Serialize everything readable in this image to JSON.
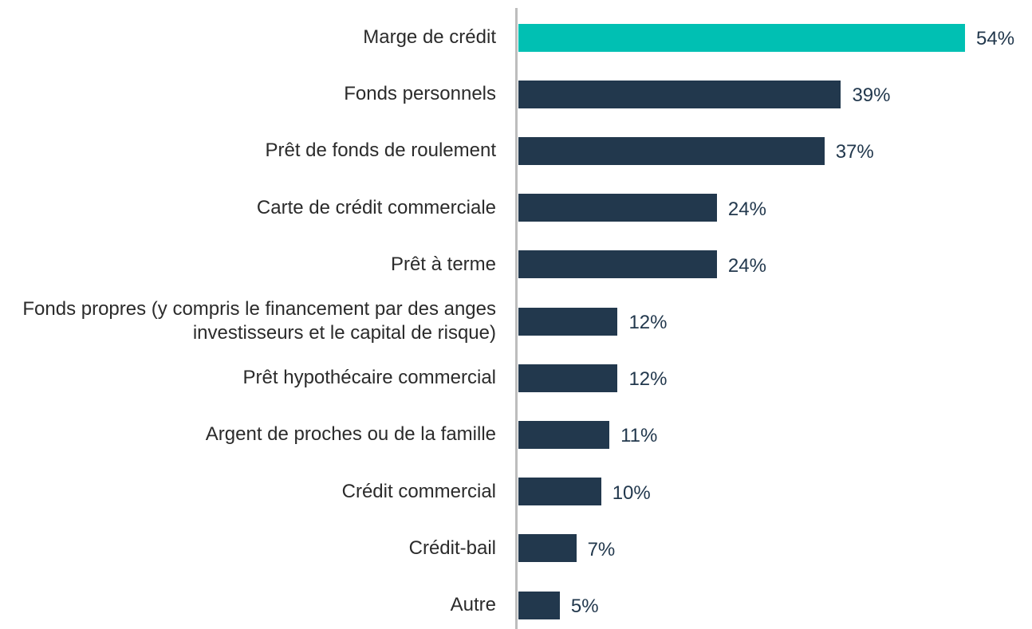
{
  "chart_data": {
    "type": "bar",
    "orientation": "horizontal",
    "categories": [
      "Marge de crédit",
      "Fonds personnels",
      "Prêt de fonds de roulement",
      "Carte de crédit commerciale",
      "Prêt à terme",
      "Fonds propres (y compris le financement par des anges investisseurs et le capital de risque)",
      "Prêt hypothécaire commercial",
      "Argent de proches ou de la famille",
      "Crédit commercial",
      "Crédit-bail",
      "Autre"
    ],
    "values": [
      54,
      39,
      37,
      24,
      24,
      12,
      12,
      11,
      10,
      7,
      5
    ],
    "value_labels": [
      "54%",
      "39%",
      "37%",
      "24%",
      "24%",
      "12%",
      "12%",
      "11%",
      "10%",
      "7%",
      "5%"
    ],
    "colors": [
      "#00c0b3",
      "#22384d",
      "#22384d",
      "#22384d",
      "#22384d",
      "#22384d",
      "#22384d",
      "#22384d",
      "#22384d",
      "#22384d",
      "#22384d"
    ]
  }
}
